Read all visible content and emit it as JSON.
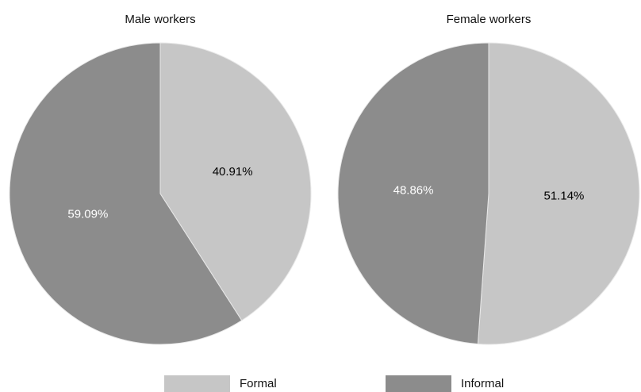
{
  "chart_data": [
    {
      "type": "pie",
      "title": "Male workers",
      "categories": [
        "Formal",
        "Informal"
      ],
      "values": [
        40.91,
        59.09
      ],
      "value_labels": [
        "40.91%",
        "59.09%"
      ],
      "colors": [
        "#c6c6c6",
        "#8c8c8c"
      ],
      "label_colors": [
        "#000000",
        "#ffffff"
      ],
      "legend": "bottom"
    },
    {
      "type": "pie",
      "title": "Female workers",
      "categories": [
        "Formal",
        "Informal"
      ],
      "values": [
        51.14,
        48.86
      ],
      "value_labels": [
        "51.14%",
        "48.86%"
      ],
      "colors": [
        "#c6c6c6",
        "#8c8c8c"
      ],
      "label_colors": [
        "#000000",
        "#ffffff"
      ],
      "legend": "bottom"
    }
  ]
}
